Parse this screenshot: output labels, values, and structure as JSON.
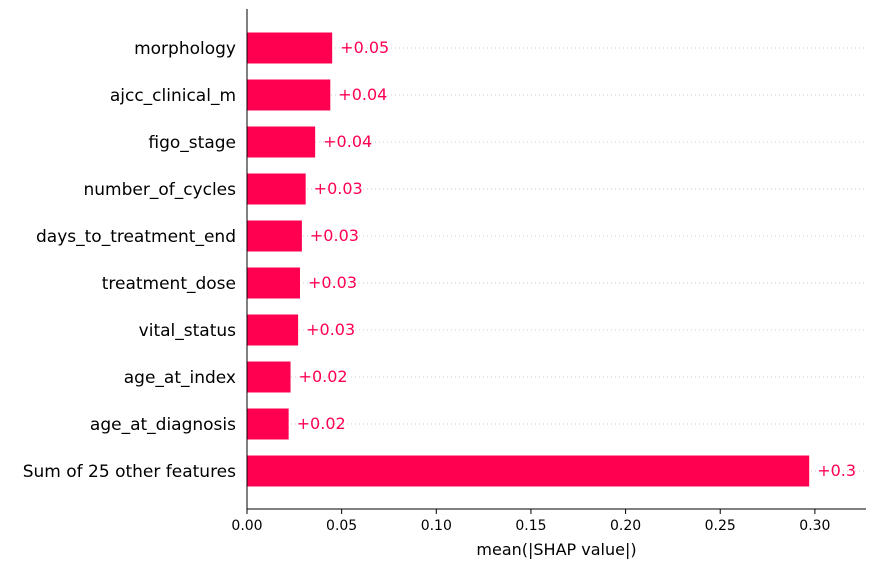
{
  "chart_data": {
    "type": "bar",
    "orientation": "horizontal",
    "categories": [
      "morphology",
      "ajcc_clinical_m",
      "figo_stage",
      "number_of_cycles",
      "days_to_treatment_end",
      "treatment_dose",
      "vital_status",
      "age_at_index",
      "age_at_diagnosis",
      "Sum of 25 other features"
    ],
    "values": [
      0.045,
      0.044,
      0.036,
      0.031,
      0.029,
      0.028,
      0.027,
      0.023,
      0.022,
      0.297
    ],
    "value_labels": [
      "+0.05",
      "+0.04",
      "+0.04",
      "+0.03",
      "+0.03",
      "+0.03",
      "+0.03",
      "+0.02",
      "+0.02",
      "+0.3"
    ],
    "xlabel": "mean(|SHAP value|)",
    "ylabel": "",
    "xlim": [
      0,
      0.327
    ],
    "x_ticks": [
      0.0,
      0.05,
      0.1,
      0.15,
      0.2,
      0.25,
      0.3
    ],
    "x_tick_labels": [
      "0.00",
      "0.05",
      "0.10",
      "0.15",
      "0.20",
      "0.25",
      "0.30"
    ],
    "grid": "dotted row guides",
    "legend": "none",
    "bar_color": "#ff0051"
  }
}
